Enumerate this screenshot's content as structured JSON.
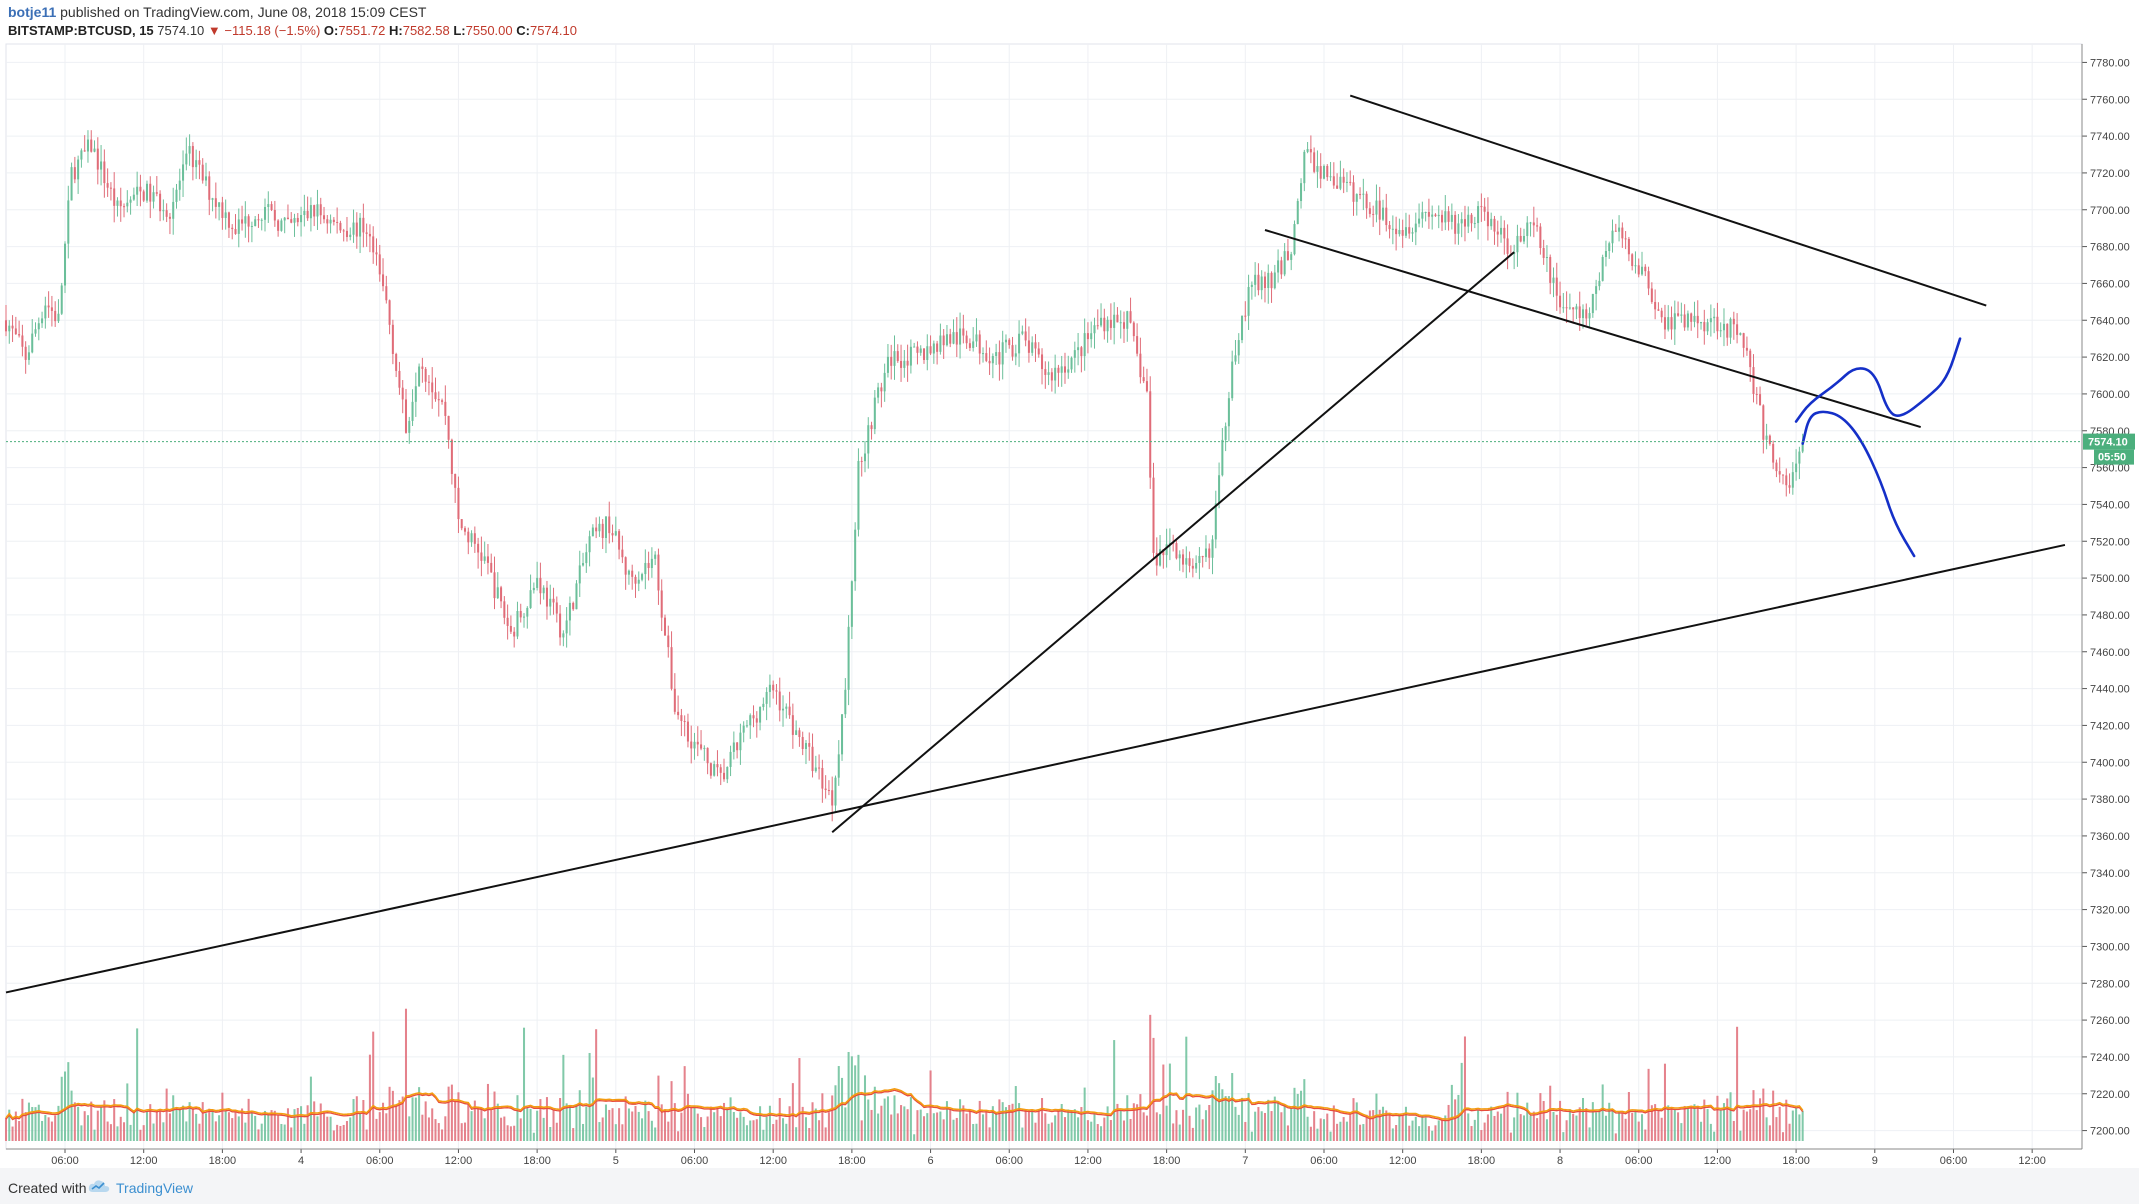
{
  "header": {
    "user": "botje11",
    "published": "published on TradingView.com, June 08, 2018 15:09 CEST",
    "symbol": "BITSTAMP:BTCUSD, 15",
    "last": "7574.10",
    "change": "−115.18 (−1.5%)",
    "o_label": "O:",
    "o_value": "7551.72",
    "h_label": "H:",
    "h_value": "7582.58",
    "l_label": "L:",
    "l_value": "7550.00",
    "c_label": "C:",
    "c_value": "7574.10"
  },
  "price_badge": "7574.10",
  "timer_badge": "05:50",
  "footer": {
    "created": "Created with",
    "brand": "TradingView"
  },
  "colors": {
    "up": "#6bbf9a",
    "down": "#e06c78",
    "ma": "#f39c12",
    "ma2": "#e74c3c",
    "badge": "#4caf7d",
    "trend": "#111111",
    "drawing": "#1530c8"
  },
  "chart_data": {
    "type": "candlestick",
    "symbol": "BITSTAMP:BTCUSD",
    "interval": "15",
    "ylim": [
      7190,
      7790
    ],
    "y_ticks": [
      7200,
      7220,
      7240,
      7260,
      7280,
      7300,
      7320,
      7340,
      7360,
      7380,
      7400,
      7420,
      7440,
      7460,
      7480,
      7500,
      7520,
      7540,
      7560,
      7580,
      7600,
      7620,
      7640,
      7660,
      7680,
      7700,
      7720,
      7740,
      7760,
      7780
    ],
    "x_labels": [
      "06:00",
      "12:00",
      "18:00",
      "4",
      "06:00",
      "12:00",
      "18:00",
      "5",
      "06:00",
      "12:00",
      "18:00",
      "6",
      "06:00",
      "12:00",
      "18:00",
      "7",
      "06:00",
      "12:00",
      "18:00",
      "8",
      "06:00",
      "12:00",
      "18:00",
      "9",
      "06:00",
      "12:00"
    ],
    "x_label_hours": [
      6,
      12,
      18,
      24,
      30,
      36,
      42,
      48,
      54,
      60,
      66,
      72,
      78,
      84,
      90,
      96,
      102,
      108,
      114,
      120,
      126,
      132,
      138,
      144,
      150,
      156
    ],
    "x_start_hour": 1.5,
    "x_end_hour": 159.8,
    "bar_hours": 0.25,
    "current_price": 7574.1,
    "price_path": [
      [
        1.5,
        7640
      ],
      [
        3,
        7620
      ],
      [
        4.5,
        7650
      ],
      [
        5.5,
        7640
      ],
      [
        6.5,
        7720
      ],
      [
        8,
        7735
      ],
      [
        10,
        7700
      ],
      [
        12,
        7710
      ],
      [
        14,
        7700
      ],
      [
        15.5,
        7730
      ],
      [
        17,
        7710
      ],
      [
        19,
        7690
      ],
      [
        21,
        7700
      ],
      [
        23,
        7690
      ],
      [
        25,
        7700
      ],
      [
        27,
        7690
      ],
      [
        29,
        7690
      ],
      [
        30.5,
        7650
      ],
      [
        32,
        7580
      ],
      [
        33,
        7620
      ],
      [
        35,
        7590
      ],
      [
        36,
        7530
      ],
      [
        38,
        7510
      ],
      [
        40,
        7470
      ],
      [
        42,
        7500
      ],
      [
        44,
        7470
      ],
      [
        46,
        7520
      ],
      [
        47.5,
        7530
      ],
      [
        49,
        7500
      ],
      [
        51,
        7510
      ],
      [
        52.5,
        7430
      ],
      [
        54,
        7410
      ],
      [
        56,
        7390
      ],
      [
        58,
        7420
      ],
      [
        60,
        7440
      ],
      [
        61.5,
        7420
      ],
      [
        63,
        7400
      ],
      [
        64.5,
        7380
      ],
      [
        65.5,
        7440
      ],
      [
        66.5,
        7560
      ],
      [
        68,
        7600
      ],
      [
        69,
        7620
      ],
      [
        71,
        7620
      ],
      [
        73,
        7630
      ],
      [
        75,
        7630
      ],
      [
        77,
        7620
      ],
      [
        79,
        7630
      ],
      [
        81,
        7610
      ],
      [
        83,
        7620
      ],
      [
        85,
        7640
      ],
      [
        87,
        7640
      ],
      [
        88.5,
        7600
      ],
      [
        89,
        7510
      ],
      [
        90.5,
        7520
      ],
      [
        92,
        7500
      ],
      [
        93.5,
        7520
      ],
      [
        95,
        7620
      ],
      [
        96.5,
        7660
      ],
      [
        98,
        7660
      ],
      [
        99.5,
        7680
      ],
      [
        100.5,
        7730
      ],
      [
        102,
        7720
      ],
      [
        104,
        7710
      ],
      [
        106,
        7700
      ],
      [
        108,
        7690
      ],
      [
        110,
        7700
      ],
      [
        112,
        7690
      ],
      [
        114,
        7700
      ],
      [
        116,
        7680
      ],
      [
        118,
        7690
      ],
      [
        120,
        7650
      ],
      [
        122,
        7640
      ],
      [
        124,
        7690
      ],
      [
        126,
        7670
      ],
      [
        128,
        7640
      ],
      [
        130,
        7640
      ],
      [
        132,
        7640
      ],
      [
        134,
        7630
      ],
      [
        135.5,
        7580
      ],
      [
        136.5,
        7560
      ],
      [
        137.5,
        7550
      ],
      [
        138.5,
        7574.1
      ]
    ],
    "trend_lines": [
      {
        "from": [
          1.5,
          7275
        ],
        "to": [
          158.5,
          7518
        ]
      },
      {
        "from": [
          64.5,
          7362
        ],
        "to": [
          116.5,
          7677
        ]
      },
      {
        "from": [
          104,
          7762
        ],
        "to": [
          152.5,
          7648
        ]
      },
      {
        "from": [
          97.5,
          7689
        ],
        "to": [
          147.5,
          7582
        ]
      }
    ],
    "drawings": [
      {
        "name": "bullish-path",
        "points": [
          [
            138,
            7585
          ],
          [
            139,
            7595
          ],
          [
            141,
            7605
          ],
          [
            142.5,
            7615
          ],
          [
            144,
            7612
          ],
          [
            145,
            7590
          ],
          [
            146,
            7587
          ],
          [
            148,
            7598
          ],
          [
            149.5,
            7608
          ],
          [
            150.5,
            7630
          ]
        ]
      },
      {
        "name": "bearish-path",
        "points": [
          [
            138.5,
            7573
          ],
          [
            139,
            7588
          ],
          [
            140,
            7591
          ],
          [
            141.5,
            7588
          ],
          [
            143,
            7575
          ],
          [
            144.5,
            7552
          ],
          [
            145.5,
            7530
          ],
          [
            147,
            7512
          ]
        ]
      }
    ]
  }
}
